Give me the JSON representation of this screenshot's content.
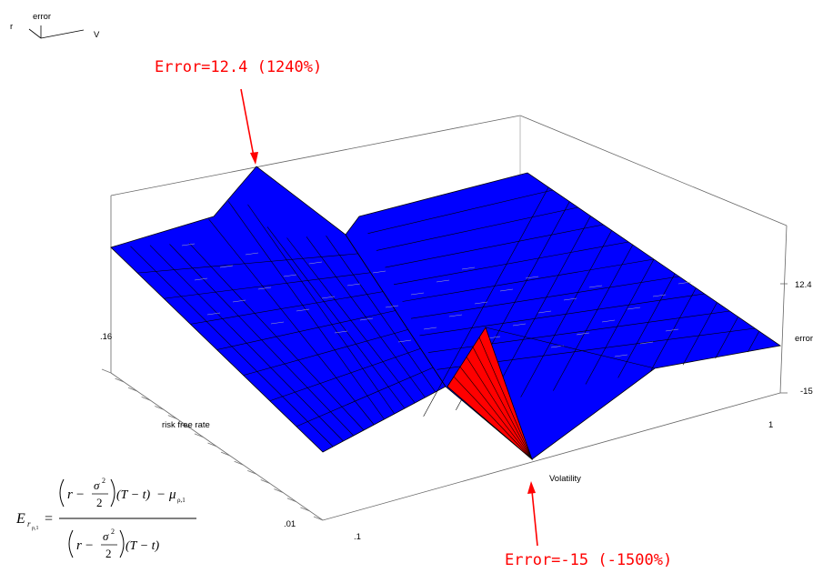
{
  "chart_data": {
    "type": "surface",
    "title": "",
    "axes": {
      "x": {
        "label": "Volatility",
        "ticks": [
          ".1",
          "1"
        ]
      },
      "y": {
        "label": "risk free rate",
        "ticks": [
          ".01",
          ".16"
        ]
      },
      "z": {
        "label": "error",
        "ticks": [
          "12.4",
          "-15"
        ],
        "range": [
          -15,
          12.4
        ]
      }
    },
    "orientation_key": {
      "r": "r",
      "error": "error",
      "v": "V"
    },
    "surface": {
      "color": "#0000ff",
      "highlight_color": "#ff0000",
      "grid_lines": true
    },
    "annotations": [
      {
        "text": "Error=12.4 (1240%)",
        "value": 12.4,
        "color": "#ff0000"
      },
      {
        "text": "Error=-15 (-1500%)",
        "value": -15,
        "color": "#ff0000"
      }
    ],
    "formula": {
      "lhs": "E",
      "lhs_sub": "r",
      "lhs_subsub": "ρ,1",
      "equals": "=",
      "r": "r",
      "minus": "−",
      "sigma": "σ",
      "two": "2",
      "T_minus_t": "(T − t)",
      "mu": "μ",
      "mu_sub": "ρ,1"
    }
  }
}
